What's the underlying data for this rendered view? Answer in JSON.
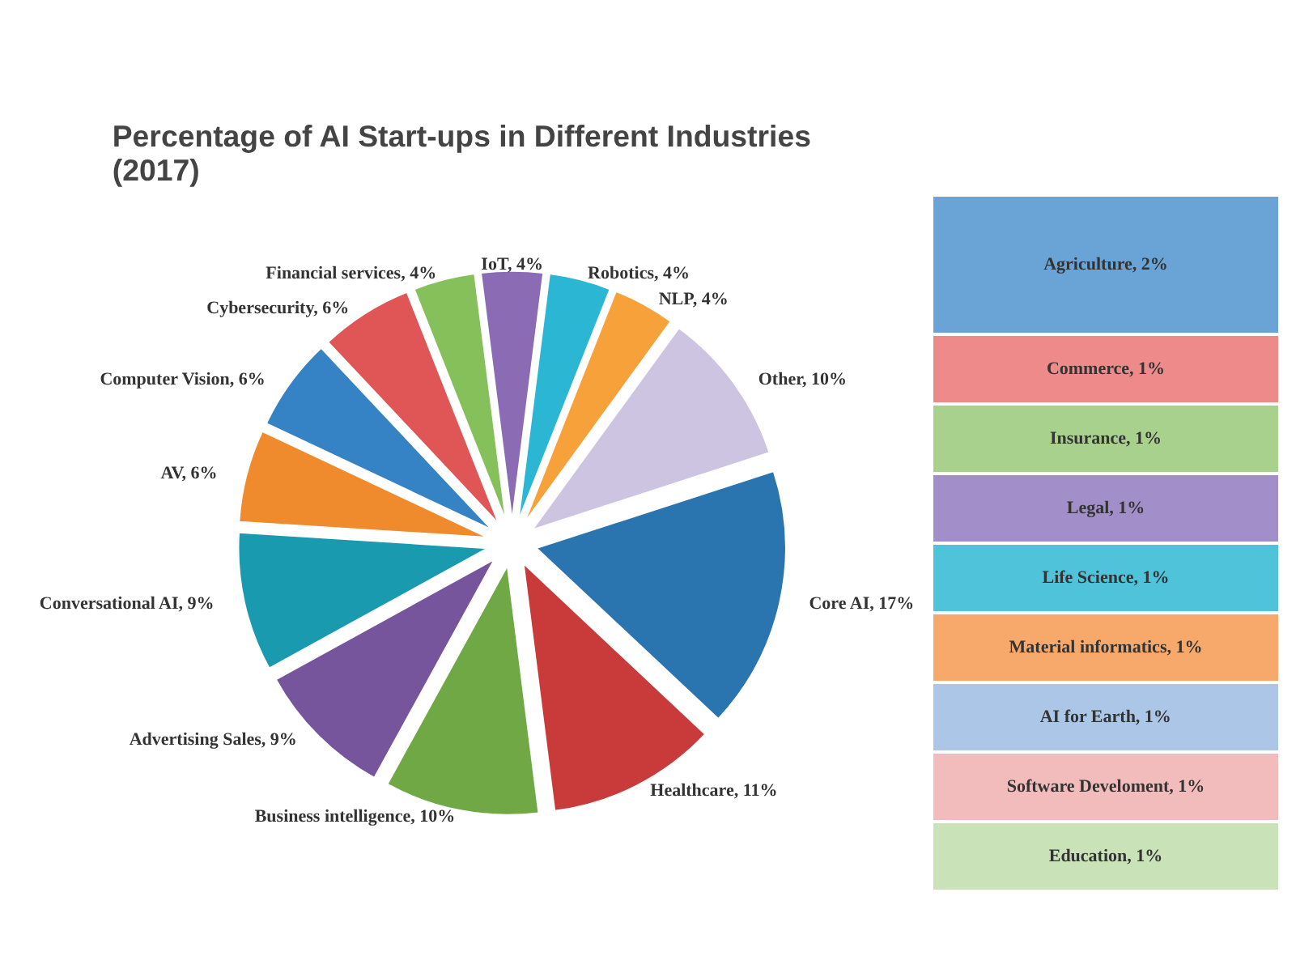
{
  "chart_data": [
    {
      "type": "pie",
      "title": "Percentage of AI Start-ups in Different Industries\n(2017)",
      "categories": [
        "Core AI",
        "Healthcare",
        "Business intelligence",
        "Advertising Sales",
        "Conversational AI",
        "AV",
        "Computer Vision",
        "Cybersecurity",
        "Financial services",
        "IoT",
        "Robotics",
        "NLP",
        "Other"
      ],
      "values": [
        17,
        11,
        10,
        9,
        9,
        6,
        6,
        6,
        4,
        4,
        4,
        4,
        10
      ],
      "value_labels": [
        "17%",
        "11%",
        "10%",
        "9%",
        "9%",
        "6%",
        "6%",
        "6%",
        "4%",
        "4%",
        "4%",
        "4%",
        "10%"
      ],
      "colors": [
        "#2a74b0",
        "#c93a3a",
        "#6fa844",
        "#76559c",
        "#1a9aae",
        "#ef8b2c",
        "#3583c4",
        "#e05555",
        "#86c05a",
        "#8a6bb4",
        "#2bb6d4",
        "#f6a13a",
        "#cdc4e2"
      ]
    },
    {
      "type": "bar",
      "stacked": true,
      "categories": [
        null
      ],
      "series": [
        {
          "color": "#c9e2b8",
          "values": [
            1
          ],
          "value_labels": [
            "Education, 1%"
          ]
        },
        {
          "color": "#f3bcbc",
          "values": [
            1
          ],
          "value_labels": [
            "Software Develoment, 1%"
          ]
        },
        {
          "color": "#abc6e6",
          "values": [
            1
          ],
          "value_labels": [
            "AI for Earth, 1%"
          ]
        },
        {
          "color": "#f6a96b",
          "values": [
            1
          ],
          "value_labels": [
            "Material informatics, 1%"
          ]
        },
        {
          "color": "#4ec3da",
          "values": [
            1
          ],
          "value_labels": [
            "Life Science, 1%"
          ]
        },
        {
          "color": "#a28ec9",
          "values": [
            1
          ],
          "value_labels": [
            "Legal, 1%"
          ]
        },
        {
          "color": "#a8d18d",
          "values": [
            1
          ],
          "value_labels": [
            "Insurance, 1%"
          ]
        },
        {
          "color": "#ee8a8a",
          "values": [
            1
          ],
          "value_labels": [
            "Commerce, 1%"
          ]
        },
        {
          "color": "#6aa3d6",
          "values": [
            2
          ],
          "value_labels": [
            "Agriculture, 2%"
          ]
        }
      ]
    }
  ]
}
